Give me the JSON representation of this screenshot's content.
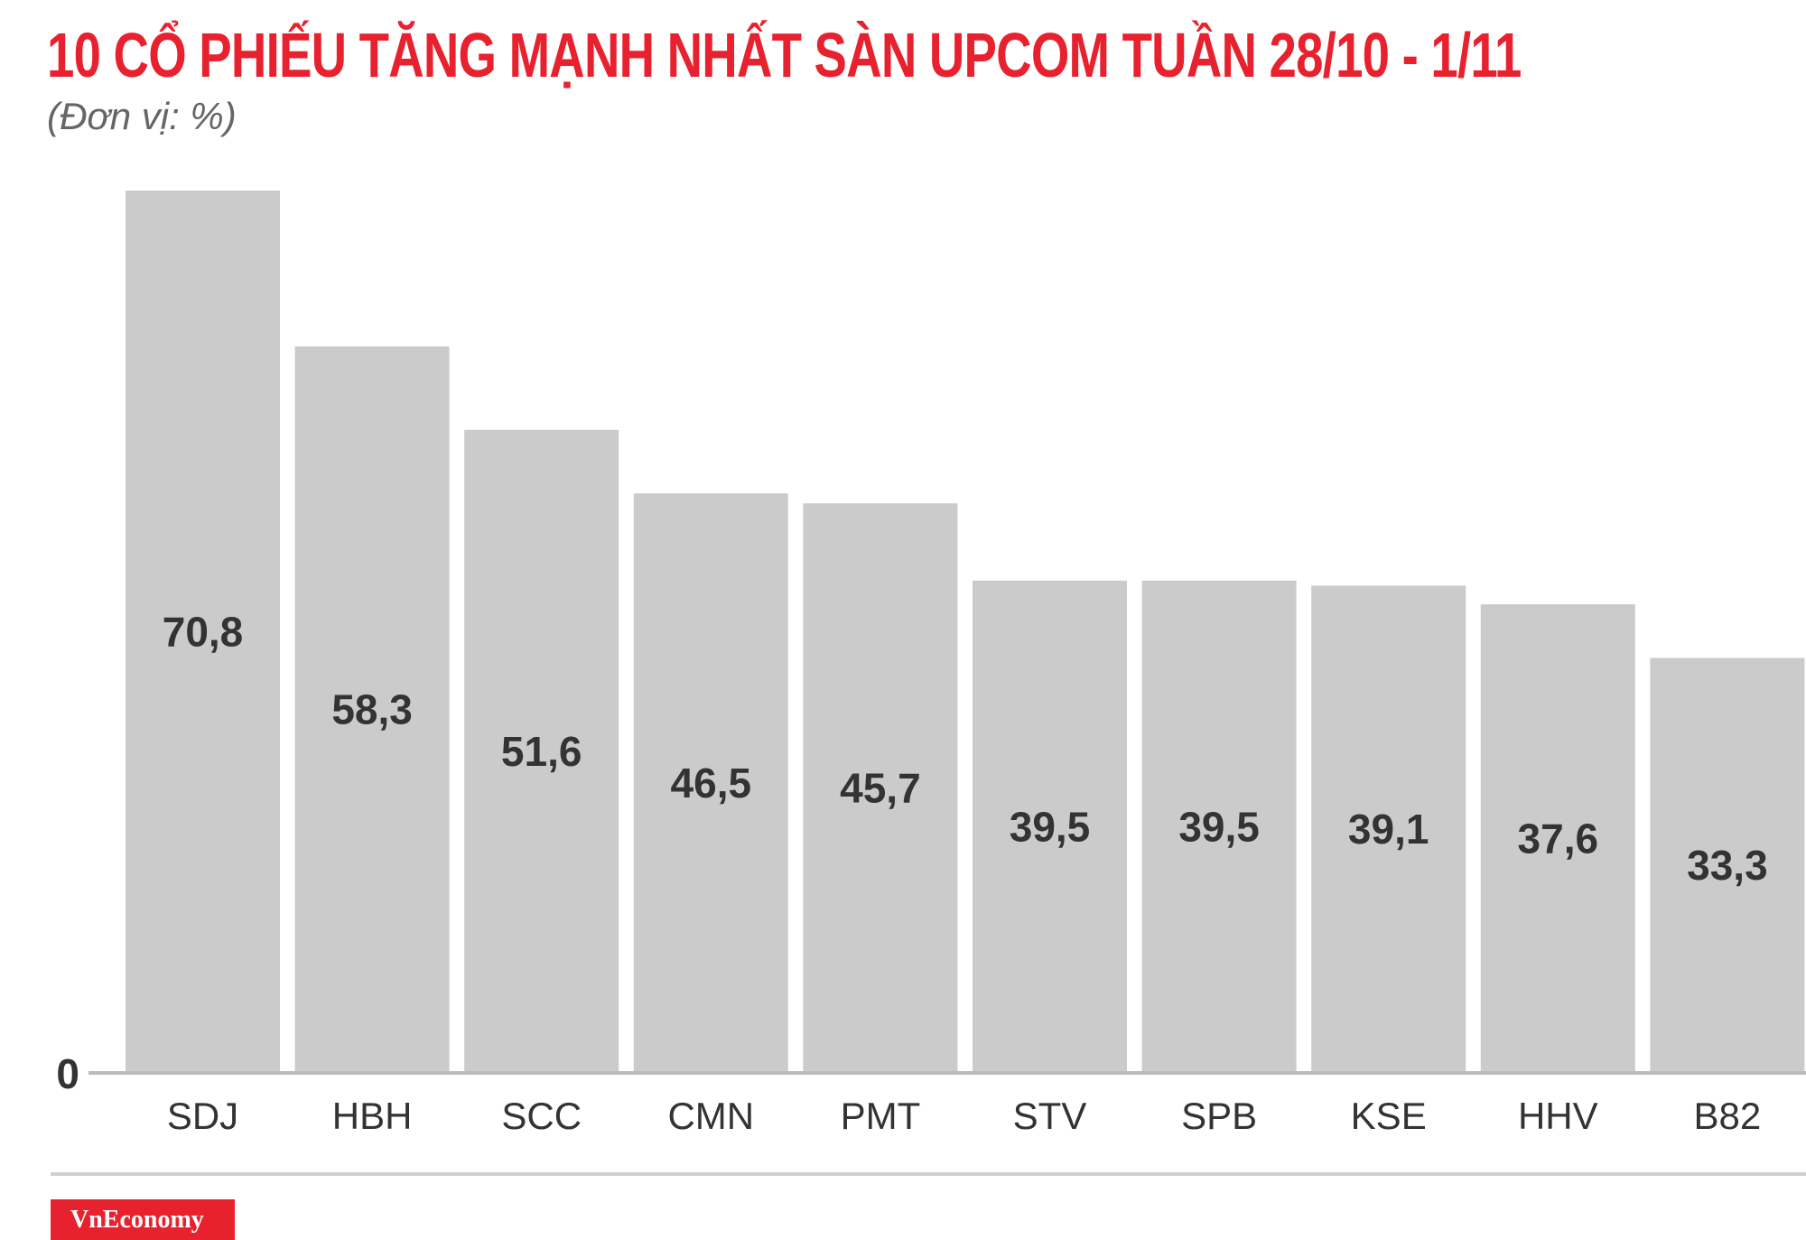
{
  "header": {
    "title": "10 CỔ PHIẾU TĂNG MẠNH NHẤT SÀN UPCOM TUẦN 28/10 - 1/11",
    "subtitle": "(Đơn vị: %)"
  },
  "chart_data": {
    "type": "bar",
    "title": "10 CỔ PHIẾU TĂNG MẠNH NHẤT SÀN UPCOM TUẦN 28/10 - 1/11",
    "subtitle": "(Đơn vị: %)",
    "categories": [
      "SDJ",
      "HBH",
      "SCC",
      "CMN",
      "PMT",
      "STV",
      "SPB",
      "KSE",
      "HHV",
      "B82"
    ],
    "values": [
      70.8,
      58.3,
      51.6,
      46.5,
      45.7,
      39.5,
      39.5,
      39.1,
      37.6,
      33.3
    ],
    "value_labels": [
      "70,8",
      "58,3",
      "51,6",
      "46,5",
      "45,7",
      "39,5",
      "39,5",
      "39,1",
      "37,6",
      "33,3"
    ],
    "y_tick_labels": [
      "0"
    ],
    "ylim": [
      0,
      71
    ],
    "grid": false,
    "legend": "none",
    "bar_color": "#cccbcc"
  },
  "footer": {
    "brand": "VnEconomy"
  },
  "colors": {
    "accent": "#e8212f",
    "bar": "#cccbcc",
    "text": "#333333",
    "axis": "#bbbbbb"
  }
}
